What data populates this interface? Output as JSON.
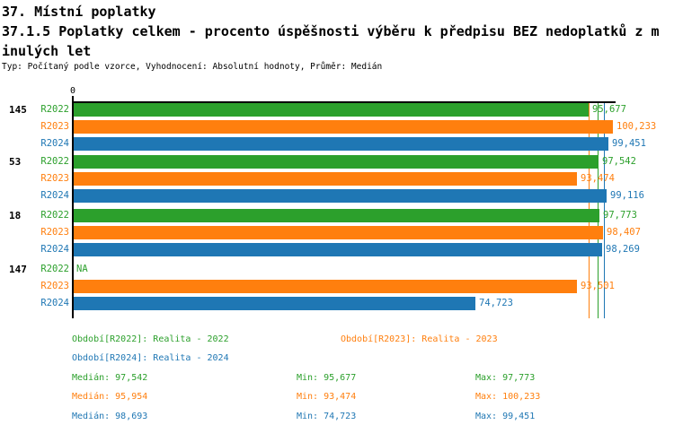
{
  "header": {
    "title": "37. Místní poplatky",
    "subtitle_line1": "37.1.5 Poplatky celkem - procento úspěšnosti výběru k předpisu BEZ nedoplatků z m",
    "subtitle_line2": "inulých let",
    "meta": "Typ: Počítaný podle vzorce, Vyhodnocení: Absolutní hodnoty, Průměr: Medián"
  },
  "colors": {
    "r2022_green": "#2ca02c",
    "r2023_orange": "#ff7f0e",
    "r2024_blue": "#1f77b4",
    "axis_black": "#000000",
    "background": "#ffffff"
  },
  "chart_data": {
    "type": "bar",
    "orientation": "horizontal",
    "title": "",
    "xlabel": "",
    "ylabel": "",
    "x_axis": {
      "origin_label": "0",
      "xlim": [
        0,
        100.9
      ],
      "gridlines": false
    },
    "categories": [
      "145",
      "53",
      "18",
      "147"
    ],
    "na_text": "NA",
    "series": [
      {
        "name": "R2022",
        "color_key": "r2022_green",
        "values": [
          95.677,
          97.542,
          97.773,
          null
        ],
        "value_labels": [
          "95,677",
          "97,542",
          "97,773",
          "NA"
        ],
        "median_value": 97.542
      },
      {
        "name": "R2023",
        "color_key": "r2023_orange",
        "values": [
          100.233,
          93.474,
          98.407,
          93.501
        ],
        "value_labels": [
          "100,233",
          "93,474",
          "98,407",
          "93,501"
        ],
        "median_value": 95.954
      },
      {
        "name": "R2024",
        "color_key": "r2024_blue",
        "values": [
          99.451,
          99.116,
          98.269,
          74.723
        ],
        "value_labels": [
          "99,451",
          "99,116",
          "98,269",
          "74,723"
        ],
        "median_value": 98.693
      }
    ],
    "legend_position": "bottom"
  },
  "legend": [
    {
      "text": "Období[R2022]: Realita - 2022",
      "series": "R2022"
    },
    {
      "text": "Období[R2023]: Realita - 2023",
      "series": "R2023"
    },
    {
      "text": "Období[R2024]: Realita - 2024",
      "series": "R2024"
    }
  ],
  "stats": [
    {
      "median": "Medián: 97,542",
      "min": "Min: 95,677",
      "max": "Max: 97,773"
    },
    {
      "median": "Medián: 95,954",
      "min": "Min: 93,474",
      "max": "Max: 100,233"
    },
    {
      "median": "Medián: 98,693",
      "min": "Min: 74,723",
      "max": "Max: 99,451"
    }
  ]
}
